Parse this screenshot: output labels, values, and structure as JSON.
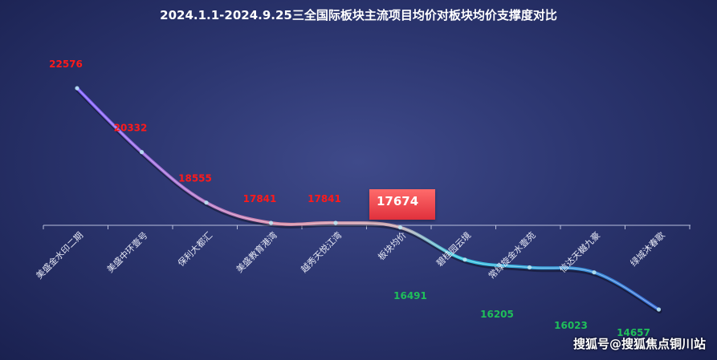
{
  "chart_data": {
    "type": "line",
    "title": "2024.1.1-2024.9.25三全国际板块主流项目均价对板块均价支撑度对比",
    "categories": [
      "美盛金水印二期",
      "美盛中环壹号",
      "保利大都汇",
      "美盛教育港湾",
      "越秀天悦江湾",
      "板块均价",
      "碧桂园云境",
      "常绿旋金水壹苑",
      "信达天樾九豪",
      "绿城沐春歌"
    ],
    "values": [
      22576,
      20332,
      18555,
      17841,
      17841,
      17674,
      16491,
      16205,
      16023,
      14657
    ],
    "data_labels": [
      "22576",
      "20332",
      "18555",
      "17841",
      "17841",
      "17674",
      "16491",
      "16205",
      "16023",
      "14657"
    ],
    "highlight": {
      "index": 5,
      "label": "17674"
    },
    "ylim": [
      14000,
      23500
    ],
    "grid": false,
    "legend": "none",
    "colors": {
      "above": "#ff1a1a",
      "below": "#1fbf5a",
      "line_start": "#7b5cff",
      "line_mid": "#d98aa6",
      "line_end": "#3a6fd8"
    }
  },
  "watermark": "搜狐号@搜狐焦点铜川站"
}
